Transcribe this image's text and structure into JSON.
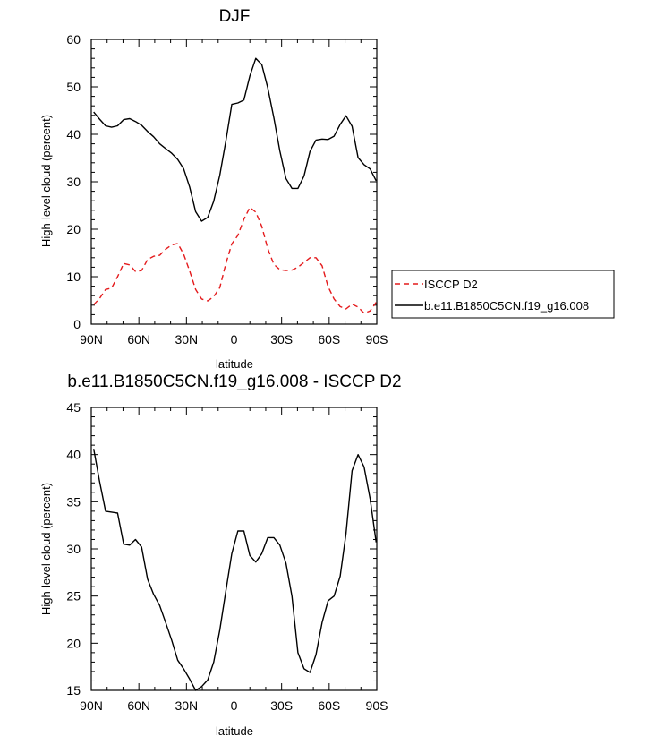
{
  "chart_data": [
    {
      "type": "line",
      "title": "DJF",
      "xlabel": "latitude",
      "ylabel": "High-level cloud (percent)",
      "xlim": [
        90,
        -90
      ],
      "ylim": [
        0,
        60
      ],
      "x_tick_values": [
        90,
        60,
        30,
        0,
        -30,
        -60,
        -90
      ],
      "x_tick_labels": [
        "90N",
        "60N",
        "30N",
        "0",
        "30S",
        "60S",
        "90S"
      ],
      "y_tick_values": [
        0,
        10,
        20,
        30,
        40,
        50,
        60
      ],
      "y_tick_labels": [
        "0",
        "10",
        "20",
        "30",
        "40",
        "50",
        "60"
      ],
      "legend_position": "right",
      "series": [
        {
          "name": "ISCCP D2",
          "color": "#e41a1c",
          "dash": "dashed",
          "x": [
            88.5,
            84.8,
            81,
            77.2,
            73.4,
            69.6,
            65.8,
            62.1,
            58.3,
            54.5,
            50.7,
            46.9,
            43.1,
            39.3,
            35.5,
            31.8,
            28,
            24.2,
            20.4,
            16.6,
            12.8,
            9,
            5.2,
            1.4,
            -2.4,
            -6.2,
            -10,
            -13.7,
            -17.5,
            -21.3,
            -25.1,
            -28.9,
            -32.7,
            -36.5,
            -40.3,
            -44.1,
            -47.9,
            -51.7,
            -55.5,
            -59.3,
            -63.1,
            -66.9,
            -70.6,
            -74.4,
            -78.2,
            -82,
            -85.8,
            -89.6
          ],
          "values": [
            4.1,
            5.4,
            7.3,
            7.6,
            10.0,
            12.8,
            12.5,
            11.1,
            11.3,
            13.6,
            14.3,
            14.5,
            15.8,
            16.7,
            17.0,
            14.8,
            11.2,
            7.3,
            5.3,
            4.9,
            5.8,
            7.7,
            12.7,
            16.9,
            18.7,
            22.1,
            24.6,
            23.6,
            20.6,
            15.9,
            12.6,
            11.5,
            11.3,
            11.4,
            12.0,
            13.0,
            14.0,
            14.0,
            12.3,
            7.9,
            5.3,
            3.7,
            3.2,
            4.2,
            3.6,
            2.3,
            2.8,
            4.6
          ]
        },
        {
          "name": "b.e11.B1850C5CN.f19_g16.008",
          "color": "#000000",
          "dash": "solid",
          "x": [
            88.5,
            84.8,
            81,
            77.2,
            73.4,
            69.6,
            65.8,
            62.1,
            58.3,
            54.5,
            50.7,
            46.9,
            43.1,
            39.3,
            35.5,
            31.8,
            28,
            24.2,
            20.4,
            16.6,
            12.8,
            9,
            5.2,
            1.4,
            -2.4,
            -6.2,
            -10,
            -13.7,
            -17.5,
            -21.3,
            -25.1,
            -28.9,
            -32.7,
            -36.5,
            -40.3,
            -44.1,
            -47.9,
            -51.7,
            -55.5,
            -59.3,
            -63.1,
            -66.9,
            -70.6,
            -74.4,
            -78.2,
            -82,
            -85.8,
            -89.6
          ],
          "values": [
            44.7,
            43.2,
            41.8,
            41.5,
            41.8,
            43.1,
            43.3,
            42.7,
            41.9,
            40.6,
            39.5,
            38.0,
            37.0,
            36.0,
            34.7,
            32.8,
            28.9,
            23.7,
            21.7,
            22.5,
            25.9,
            31.4,
            38.5,
            46.3,
            46.6,
            47.2,
            52.3,
            56.0,
            54.7,
            49.8,
            43.5,
            36.5,
            30.7,
            28.6,
            28.6,
            31.2,
            36.4,
            38.8,
            39.0,
            38.9,
            39.6,
            42.1,
            43.9,
            41.7,
            35.1,
            33.6,
            32.7,
            30.2
          ]
        }
      ]
    },
    {
      "type": "line",
      "title": "b.e11.B1850C5CN.f19_g16.008 - ISCCP D2",
      "xlabel": "latitude",
      "ylabel": "High-level cloud (percent)",
      "xlim": [
        90,
        -90
      ],
      "ylim": [
        15,
        45
      ],
      "x_tick_values": [
        90,
        60,
        30,
        0,
        -30,
        -60,
        -90
      ],
      "x_tick_labels": [
        "90N",
        "60N",
        "30N",
        "0",
        "30S",
        "60S",
        "90S"
      ],
      "y_tick_values": [
        15,
        20,
        25,
        30,
        35,
        40,
        45
      ],
      "y_tick_labels": [
        "15",
        "20",
        "25",
        "30",
        "35",
        "40",
        "45"
      ],
      "series": [
        {
          "color": "#000000",
          "dash": "solid",
          "x": [
            88.5,
            84.8,
            81,
            77.2,
            73.4,
            69.6,
            65.8,
            62.1,
            58.3,
            54.5,
            50.7,
            46.9,
            43.1,
            39.3,
            35.5,
            31.8,
            28,
            24.2,
            20.4,
            16.6,
            12.8,
            9,
            5.2,
            1.4,
            -2.4,
            -6.2,
            -10,
            -13.7,
            -17.5,
            -21.3,
            -25.1,
            -28.9,
            -32.7,
            -36.5,
            -40.3,
            -44.1,
            -47.9,
            -51.7,
            -55.5,
            -59.3,
            -63.1,
            -66.9,
            -70.6,
            -74.4,
            -78.2,
            -82,
            -85.8,
            -89.6
          ],
          "values": [
            40.6,
            37.2,
            34.0,
            33.9,
            33.8,
            30.5,
            30.4,
            31.0,
            30.2,
            26.8,
            25.2,
            24.0,
            22.2,
            20.3,
            18.2,
            17.3,
            16.2,
            15.0,
            15.4,
            16.1,
            18.0,
            21.4,
            25.5,
            29.5,
            31.9,
            31.9,
            29.3,
            28.6,
            29.5,
            31.2,
            31.2,
            30.4,
            28.5,
            25.0,
            19.0,
            17.3,
            16.9,
            18.8,
            22.2,
            24.5,
            25.0,
            27.1,
            31.6,
            38.3,
            40.0,
            38.7,
            35.3,
            30.7
          ]
        }
      ]
    }
  ]
}
